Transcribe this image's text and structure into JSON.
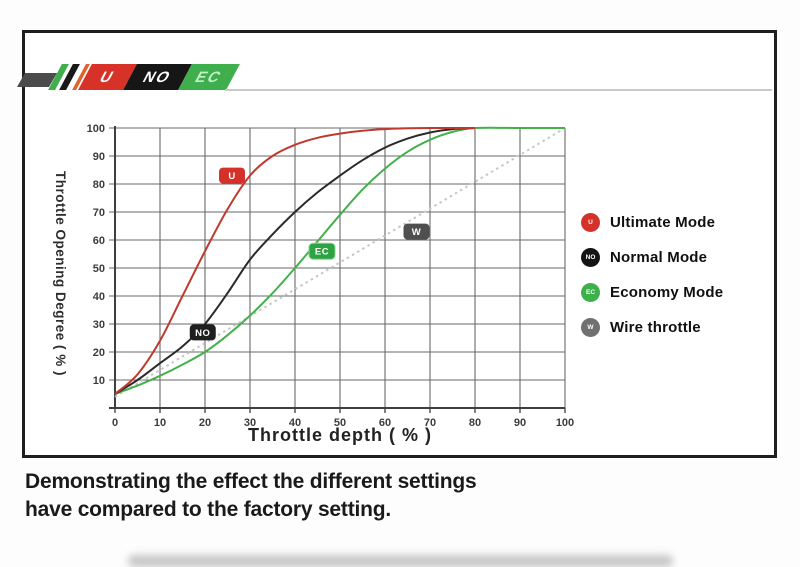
{
  "ribbon": {
    "items": [
      {
        "label": "U",
        "bg": "#d63228",
        "fg": "#ffffff"
      },
      {
        "label": "NO",
        "bg": "#161616",
        "fg": "#ffffff"
      },
      {
        "label": "EC",
        "bg": "#3fae4c",
        "fg": "#c2f2c9"
      }
    ],
    "stripe_colors": {
      "green": "#3fae4c",
      "black": "#191919",
      "orange": "#e2622b"
    }
  },
  "caption": {
    "line1": "Demonstrating the effect the different settings",
    "line2": "have compared to the factory setting."
  },
  "chart_data": {
    "type": "line",
    "title": "",
    "xlabel": "Throttle depth ( % )",
    "ylabel": "Throttle Opening Degree ( % )",
    "xlim": [
      0,
      100
    ],
    "ylim": [
      0,
      100
    ],
    "x_ticks": [
      0,
      10,
      20,
      30,
      40,
      50,
      60,
      70,
      80,
      90,
      100
    ],
    "y_ticks": [
      10,
      20,
      30,
      40,
      50,
      60,
      70,
      80,
      90,
      100
    ],
    "grid": true,
    "legend_position": "right",
    "series": [
      {
        "name": "Wire throttle",
        "badge": "W",
        "style": "dotted",
        "color": "#c6c6c6",
        "badge_bg": "#4f4f4f",
        "legend_color": "#707070",
        "badge_pos": [
          67,
          63
        ],
        "points": [
          [
            0,
            4
          ],
          [
            100,
            100
          ]
        ]
      },
      {
        "name": "Economy Mode",
        "badge": "EC",
        "style": "solid",
        "color": "#43b04a",
        "badge_bg": "#2fa344",
        "badge_stroke": "#7fd98a",
        "legend_color": "#3cb14a",
        "badge_pos": [
          46,
          56
        ],
        "points": [
          [
            0,
            5
          ],
          [
            5,
            8
          ],
          [
            10,
            11.5
          ],
          [
            15,
            15.5
          ],
          [
            20,
            20
          ],
          [
            25,
            26
          ],
          [
            30,
            33
          ],
          [
            35,
            41
          ],
          [
            40,
            50
          ],
          [
            45,
            59.5
          ],
          [
            50,
            69
          ],
          [
            55,
            78
          ],
          [
            60,
            85.5
          ],
          [
            65,
            91.5
          ],
          [
            70,
            95.8
          ],
          [
            75,
            98.6
          ],
          [
            80,
            100
          ],
          [
            90,
            100
          ],
          [
            100,
            100
          ]
        ]
      },
      {
        "name": "Normal Mode",
        "badge": "NO",
        "style": "solid",
        "color": "#2a2a2a",
        "badge_bg": "#1f1f1f",
        "legend_color": "#141414",
        "badge_pos": [
          19.5,
          27
        ],
        "points": [
          [
            0,
            5
          ],
          [
            5,
            10
          ],
          [
            10,
            16
          ],
          [
            15,
            22
          ],
          [
            20,
            30
          ],
          [
            25,
            41
          ],
          [
            30,
            53
          ],
          [
            35,
            62
          ],
          [
            40,
            70
          ],
          [
            45,
            77
          ],
          [
            50,
            83
          ],
          [
            55,
            88.5
          ],
          [
            60,
            93
          ],
          [
            65,
            96.2
          ],
          [
            70,
            98.4
          ],
          [
            75,
            99.6
          ],
          [
            80,
            100
          ]
        ]
      },
      {
        "name": "Ultimate Mode",
        "badge": "U",
        "style": "solid",
        "color": "#c0392f",
        "badge_bg": "#d4312b",
        "legend_color": "#d4312b",
        "badge_pos": [
          26,
          83
        ],
        "points": [
          [
            0,
            5
          ],
          [
            5,
            12
          ],
          [
            10,
            24
          ],
          [
            15,
            40
          ],
          [
            20,
            56
          ],
          [
            25,
            71
          ],
          [
            30,
            83
          ],
          [
            35,
            90
          ],
          [
            40,
            94
          ],
          [
            45,
            96.5
          ],
          [
            50,
            98
          ],
          [
            55,
            99
          ],
          [
            60,
            99.6
          ],
          [
            65,
            99.9
          ],
          [
            70,
            100
          ],
          [
            80,
            100
          ]
        ]
      }
    ],
    "legend_order": [
      "U",
      "NO",
      "EC",
      "W"
    ]
  }
}
